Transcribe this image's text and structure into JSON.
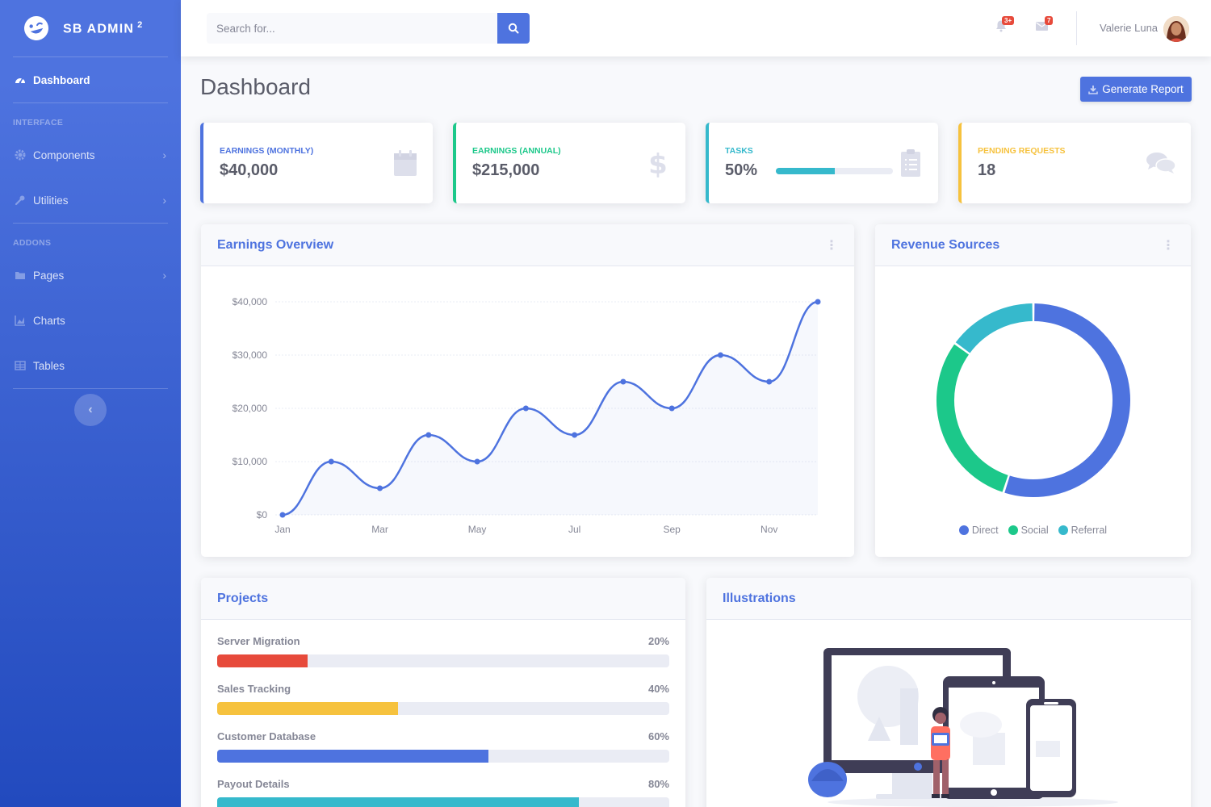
{
  "brand": {
    "name": "SB ADMIN",
    "sup": "2"
  },
  "sidebar": {
    "dashboard": "Dashboard",
    "section_interface": "Interface",
    "components": "Components",
    "utilities": "Utilities",
    "section_addons": "Addons",
    "pages": "Pages",
    "charts": "Charts",
    "tables": "Tables"
  },
  "topbar": {
    "search_placeholder": "Search for...",
    "alerts_badge": "3+",
    "messages_badge": "7",
    "user_name": "Valerie Luna"
  },
  "page": {
    "title": "Dashboard",
    "generate_report": "Generate Report"
  },
  "stats": [
    {
      "label": "Earnings (Monthly)",
      "value": "$40,000",
      "color": "#4e73df",
      "icon": "calendar-icon"
    },
    {
      "label": "Earnings (Annual)",
      "value": "$215,000",
      "color": "#1cc88a",
      "icon": "dollar-icon"
    },
    {
      "label": "Tasks",
      "value": "50%",
      "color": "#36b9cc",
      "icon": "clipboard-icon",
      "progress": 0.5
    },
    {
      "label": "Pending Requests",
      "value": "18",
      "color": "#f6c23e",
      "icon": "comments-icon"
    }
  ],
  "earnings_card": {
    "title": "Earnings Overview"
  },
  "revenue_card": {
    "title": "Revenue Sources"
  },
  "projects_card": {
    "title": "Projects",
    "items": [
      {
        "name": "Server Migration",
        "percent_label": "20%",
        "value": 20,
        "color": "#e74a3b"
      },
      {
        "name": "Sales Tracking",
        "percent_label": "40%",
        "value": 40,
        "color": "#f6c23e"
      },
      {
        "name": "Customer Database",
        "percent_label": "60%",
        "value": 60,
        "color": "#4e73df"
      },
      {
        "name": "Payout Details",
        "percent_label": "80%",
        "value": 80,
        "color": "#36b9cc"
      }
    ]
  },
  "illustrations_card": {
    "title": "Illustrations"
  },
  "chart_data": [
    {
      "type": "area",
      "x": [
        "Jan",
        "Feb",
        "Mar",
        "Apr",
        "May",
        "Jun",
        "Jul",
        "Aug",
        "Sep",
        "Oct",
        "Nov",
        "Dec"
      ],
      "x_tick_labels": [
        "Jan",
        "Mar",
        "May",
        "Jul",
        "Sep",
        "Nov"
      ],
      "values": [
        0,
        10000,
        5000,
        15000,
        10000,
        20000,
        15000,
        25000,
        20000,
        30000,
        25000,
        40000
      ],
      "y_tick_labels": [
        "$0",
        "$10,000",
        "$20,000",
        "$30,000",
        "$40,000"
      ],
      "ylim": [
        0,
        40000
      ],
      "grid": true,
      "color": "#4e73df"
    },
    {
      "type": "pie",
      "donut": true,
      "labels": [
        "Direct",
        "Social",
        "Referral"
      ],
      "values": [
        55,
        30,
        15
      ],
      "colors": [
        "#4e73df",
        "#1cc88a",
        "#36b9cc"
      ],
      "legend": "bottom"
    }
  ]
}
